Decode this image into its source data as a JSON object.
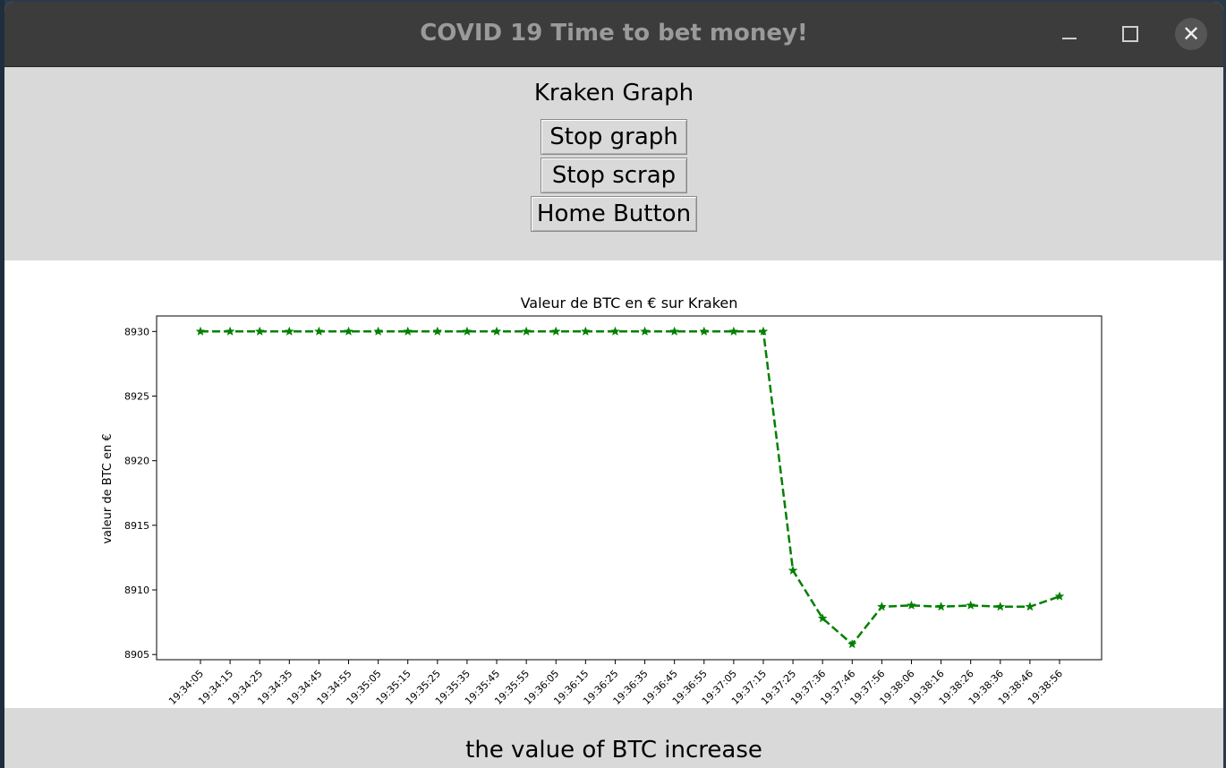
{
  "window": {
    "title": "COVID 19 Time to bet money!"
  },
  "controls": {
    "minimize_icon": "minimize-icon",
    "maximize_icon": "maximize-icon",
    "close_icon": "close-icon"
  },
  "header": {
    "title": "Kraken Graph"
  },
  "buttons": {
    "stop_graph": "Stop graph",
    "stop_scrap": "Stop scrap",
    "home": "Home Button"
  },
  "footer": {
    "message": "the value of BTC increase"
  },
  "chart_data": {
    "type": "line",
    "title": "Valeur de BTC en € sur Kraken",
    "xlabel": "",
    "ylabel": "valeur de BTC en €",
    "ylim": [
      8904.6,
      8931.2
    ],
    "yticks": [
      8905,
      8910,
      8915,
      8920,
      8925,
      8930
    ],
    "line_color": "#008000",
    "line_style": "dashed",
    "marker": "star",
    "categories": [
      "19:34:05",
      "19:34:15",
      "19:34:25",
      "19:34:35",
      "19:34:45",
      "19:34:55",
      "19:35:05",
      "19:35:15",
      "19:35:25",
      "19:35:35",
      "19:35:45",
      "19:35:55",
      "19:36:05",
      "19:36:15",
      "19:36:25",
      "19:36:35",
      "19:36:45",
      "19:36:55",
      "19:37:05",
      "19:37:15",
      "19:37:25",
      "19:37:36",
      "19:37:46",
      "19:37:56",
      "19:38:06",
      "19:38:16",
      "19:38:26",
      "19:38:36",
      "19:38:46",
      "19:38:56"
    ],
    "values": [
      8930,
      8930,
      8930,
      8930,
      8930,
      8930,
      8930,
      8930,
      8930,
      8930,
      8930,
      8930,
      8930,
      8930,
      8930,
      8930,
      8930,
      8930,
      8930,
      8930,
      8911.5,
      8907.8,
      8905.8,
      8908.7,
      8908.8,
      8908.7,
      8908.8,
      8908.7,
      8908.7,
      8909.5
    ]
  }
}
